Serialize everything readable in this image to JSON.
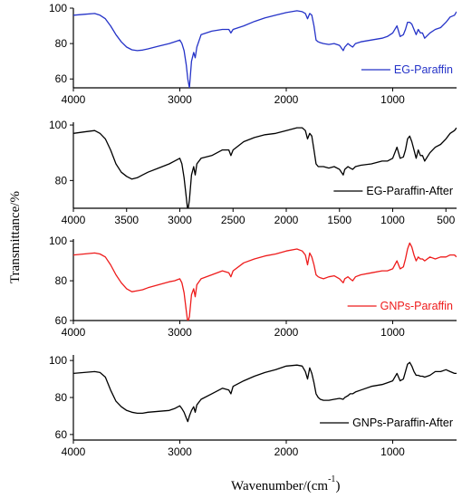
{
  "figure": {
    "ylabel": "Transmittance/%",
    "xlabel_main": "Wavenumber/(cm",
    "xlabel_sup": "-1",
    "xlabel_close": ")"
  },
  "chart_data": [
    {
      "type": "line",
      "series": [
        {
          "name": "EG-Paraffin",
          "color": "#2533c8",
          "x": [
            4000,
            3900,
            3800,
            3750,
            3700,
            3650,
            3600,
            3550,
            3500,
            3450,
            3400,
            3350,
            3300,
            3200,
            3100,
            3050,
            3000,
            2980,
            2960,
            2940,
            2925,
            2910,
            2890,
            2870,
            2855,
            2840,
            2800,
            2700,
            2600,
            2540,
            2520,
            2500,
            2400,
            2300,
            2200,
            2100,
            2000,
            1900,
            1850,
            1820,
            1800,
            1780,
            1760,
            1740,
            1720,
            1700,
            1680,
            1650,
            1600,
            1550,
            1500,
            1465,
            1450,
            1420,
            1400,
            1376,
            1350,
            1300,
            1200,
            1100,
            1050,
            1000,
            960,
            930,
            900,
            880,
            860,
            840,
            820,
            800,
            780,
            760,
            740,
            720,
            700,
            650,
            600,
            550,
            500,
            460,
            420,
            400
          ],
          "y": [
            96,
            96.5,
            97,
            96,
            94,
            90,
            85,
            81,
            78,
            76.5,
            76,
            76.3,
            77,
            78.5,
            80,
            81,
            82,
            80,
            76,
            68,
            60,
            55,
            70,
            75,
            72,
            78,
            85,
            87,
            88,
            88,
            86,
            88,
            90,
            92.5,
            94.5,
            96,
            97.5,
            98.5,
            98,
            97,
            94,
            97,
            96,
            90,
            82,
            81,
            80.5,
            80,
            79.5,
            80,
            79,
            76,
            78,
            80,
            79,
            78,
            80,
            81,
            82,
            83,
            84,
            86,
            90,
            84,
            85,
            88,
            92,
            92,
            91,
            88,
            85,
            88,
            86,
            86,
            83,
            86,
            88,
            89,
            92,
            95,
            96,
            98
          ]
        }
      ],
      "xlim": [
        4000,
        400
      ],
      "ylim": [
        55,
        100
      ],
      "xticks": [
        4000,
        3000,
        2000,
        1000
      ],
      "yticks": [
        60,
        80,
        100
      ],
      "ytick_labels": [
        "60",
        "80",
        "100"
      ],
      "legend": "bottom-right"
    },
    {
      "type": "line",
      "series": [
        {
          "name": "EG-Paraffin-After",
          "color": "#000000",
          "x": [
            4000,
            3900,
            3800,
            3750,
            3700,
            3650,
            3600,
            3550,
            3500,
            3450,
            3400,
            3350,
            3300,
            3200,
            3100,
            3050,
            3000,
            2980,
            2960,
            2940,
            2925,
            2910,
            2890,
            2870,
            2855,
            2840,
            2800,
            2700,
            2600,
            2540,
            2520,
            2500,
            2400,
            2300,
            2200,
            2100,
            2000,
            1900,
            1850,
            1820,
            1800,
            1780,
            1760,
            1740,
            1720,
            1700,
            1680,
            1650,
            1600,
            1550,
            1500,
            1465,
            1450,
            1420,
            1400,
            1376,
            1350,
            1300,
            1200,
            1100,
            1050,
            1000,
            960,
            930,
            900,
            880,
            860,
            840,
            820,
            800,
            780,
            760,
            740,
            720,
            700,
            650,
            600,
            550,
            500,
            460,
            420,
            400
          ],
          "y": [
            97,
            97.5,
            98,
            97,
            95,
            91,
            86,
            83,
            81.5,
            80.5,
            81,
            82,
            83,
            84.5,
            86,
            87,
            88,
            86,
            81,
            74,
            69,
            73,
            82,
            85,
            82,
            86,
            88,
            89,
            91,
            91,
            89,
            91,
            94,
            95.5,
            96.5,
            97,
            98,
            99,
            99,
            98,
            95,
            97,
            96,
            91,
            86,
            85,
            85,
            85,
            84.5,
            85,
            84,
            82,
            84,
            85,
            84.5,
            84,
            85,
            85.5,
            86,
            87,
            87,
            88,
            92,
            88,
            88.5,
            91,
            95,
            96,
            94,
            91,
            88,
            91,
            89,
            89,
            87,
            90,
            92,
            93,
            95,
            97,
            98,
            99
          ]
        }
      ],
      "xlim": [
        4000,
        400
      ],
      "ylim": [
        70,
        101
      ],
      "xticks": [
        4000,
        3500,
        3000,
        2500,
        2000,
        1500,
        1000,
        500
      ],
      "yticks": [
        80,
        100
      ],
      "ytick_labels": [
        "80",
        "100"
      ],
      "legend": "bottom-right"
    },
    {
      "type": "line",
      "series": [
        {
          "name": "GNPs-Paraffin",
          "color": "#ee1c1c",
          "x": [
            4000,
            3900,
            3800,
            3750,
            3700,
            3650,
            3600,
            3550,
            3500,
            3450,
            3400,
            3350,
            3300,
            3200,
            3100,
            3050,
            3000,
            2980,
            2960,
            2940,
            2925,
            2910,
            2890,
            2870,
            2855,
            2840,
            2800,
            2700,
            2600,
            2540,
            2520,
            2500,
            2400,
            2300,
            2200,
            2100,
            2000,
            1900,
            1850,
            1820,
            1800,
            1780,
            1760,
            1740,
            1720,
            1700,
            1680,
            1650,
            1600,
            1550,
            1500,
            1465,
            1450,
            1420,
            1400,
            1376,
            1350,
            1300,
            1200,
            1100,
            1050,
            1000,
            960,
            930,
            900,
            880,
            860,
            840,
            820,
            800,
            780,
            760,
            740,
            720,
            700,
            650,
            600,
            550,
            500,
            460,
            420,
            400
          ],
          "y": [
            93,
            93.5,
            94,
            93.5,
            92,
            88,
            83,
            79,
            76,
            74.5,
            75,
            75.5,
            76.5,
            78,
            79.5,
            80,
            81,
            79,
            74,
            65,
            59,
            62,
            73,
            76,
            72,
            78,
            81,
            83,
            85,
            84,
            82,
            85,
            89,
            91,
            92.5,
            93.5,
            95,
            96,
            95,
            93,
            88,
            94,
            92,
            88,
            83,
            82,
            81.5,
            81,
            82,
            82.5,
            81,
            79,
            81,
            82,
            81,
            80,
            82,
            83,
            84,
            85,
            85,
            86,
            90,
            86,
            87,
            91,
            96,
            99,
            97,
            93,
            90,
            92,
            91,
            91,
            90,
            92,
            91,
            92,
            92,
            93,
            93,
            92
          ]
        }
      ],
      "xlim": [
        4000,
        400
      ],
      "ylim": [
        60,
        101
      ],
      "xticks": [
        4000,
        3000,
        2000,
        1000
      ],
      "yticks": [
        60,
        80,
        100
      ],
      "ytick_labels": [
        "60",
        "80",
        "100"
      ],
      "legend": "bottom-right"
    },
    {
      "type": "line",
      "series": [
        {
          "name": "GNPs-Paraffin-After",
          "color": "#000000",
          "x": [
            4000,
            3900,
            3800,
            3750,
            3700,
            3650,
            3600,
            3550,
            3500,
            3450,
            3400,
            3350,
            3300,
            3200,
            3100,
            3050,
            3000,
            2980,
            2960,
            2940,
            2925,
            2910,
            2890,
            2870,
            2855,
            2840,
            2800,
            2700,
            2600,
            2540,
            2520,
            2500,
            2400,
            2300,
            2200,
            2100,
            2000,
            1900,
            1850,
            1820,
            1800,
            1780,
            1760,
            1740,
            1720,
            1700,
            1680,
            1650,
            1600,
            1550,
            1500,
            1465,
            1450,
            1420,
            1400,
            1376,
            1350,
            1300,
            1200,
            1100,
            1050,
            1000,
            960,
            930,
            900,
            880,
            860,
            840,
            820,
            800,
            780,
            760,
            740,
            720,
            700,
            650,
            600,
            550,
            500,
            460,
            420,
            400
          ],
          "y": [
            93,
            93.5,
            94,
            93.5,
            91,
            84,
            78,
            75,
            73,
            72,
            71.5,
            71.5,
            72,
            72.5,
            73,
            74,
            75.5,
            74,
            72,
            69,
            67,
            70,
            73,
            75,
            72,
            76,
            79,
            82,
            85,
            84,
            82,
            86,
            89,
            91.5,
            93.5,
            95,
            97,
            97.5,
            97,
            94,
            90,
            96,
            93,
            88,
            82,
            80,
            79,
            78.5,
            78.5,
            79,
            79.5,
            79,
            80,
            81,
            82,
            82,
            83,
            84,
            86,
            87,
            88,
            89,
            93,
            89,
            90,
            94,
            98,
            99,
            97,
            94,
            92,
            92,
            91.5,
            91.5,
            91,
            92,
            94,
            94,
            95,
            94,
            93,
            93
          ]
        }
      ],
      "xlim": [
        4000,
        400
      ],
      "ylim": [
        57,
        103
      ],
      "xticks": [
        4000,
        3000,
        2000,
        1000
      ],
      "yticks": [
        60,
        80,
        100
      ],
      "ytick_labels": [
        "60",
        "80",
        "100"
      ],
      "legend": "bottom-right"
    }
  ]
}
